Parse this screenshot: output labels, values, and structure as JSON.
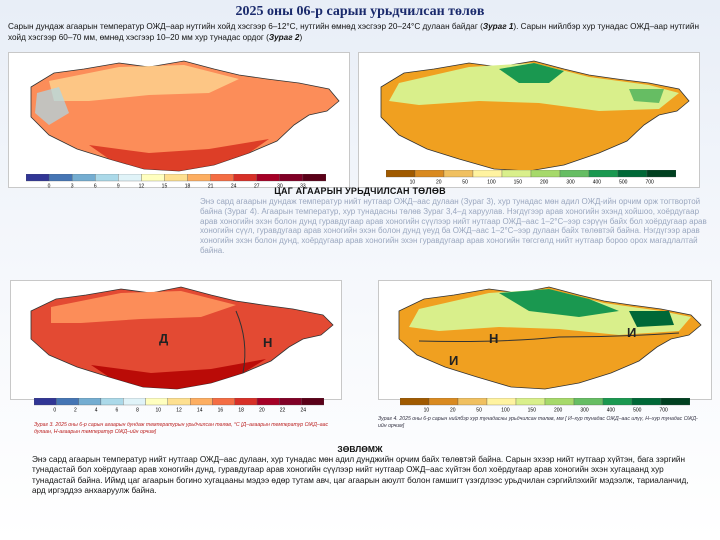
{
  "title": "2025 оны 06-р сарын урьдчилсан төлөв",
  "intro": {
    "part1": "Сарын дундаж агаарын температур ОЖД–аар нутгийн хойд хэсгээр 6–12°C, нутгийн өмнөд хэсгээр 20–24°C дулаан байдаг (",
    "ref1": "Зураг 1",
    "part2": "). Сарын нийлбэр хур тунадас ОЖД–аар нутгийн хойд хэсгээр 60–70 мм, өмнөд хэсгээр 10–20 мм хур тунадас ордог (",
    "ref2": "Зураг 2",
    "part3": ")"
  },
  "section_title": "ЦАГ АГААРЫН УРЬДЧИЛСАН ТӨЛӨВ",
  "forecast_text": "Энэ сард агаарын дундаж температур нийт нутгаар ОЖД–аас дулаан (Зураг 3), хур тунадас мөн адил ОЖД-ийн орчим орж тогтвортой байна (Зураг 4). Агаарын температур, хур тунадасны төлөв Зураг 3,4–д харуулав. Нэгдүгээр арав хоногийн эхэнд хойшоо, хоёрдугаар арав хоногийн эхэн болон дунд гуравдугаар арав хоногийн сүүлээр нийт нутгаар ОЖД–аас 1–2°C–ээр сэрүүн байх бол хоёрдугаар арав хоногийн сүүл, гуравдугаар арав хоногийн эхэн болон дунд үеуд ба ОЖД–аас 1–2°C–ээр дулаан байх төлөвтэй байна. Нэгдүгээр арав хоногийн эхэн болон дунд, хоёрдугаар арав хоногийн эхэн гуравдугаар арав хоногийн төгсгөлд нийт нутгаар бороо орох магадлалтай байна.",
  "captions": {
    "fig3": "Зураг 3. 2025 оны 6-р сарын агаарын дундаж температурын урьдчилсан төлөв, °C [Д–агаарын температур ОЖД–аас дулаан, Н-агаарын температур ОЖД–ийн орчим]",
    "fig4": "Зураг 4. 2025 оны 6-р сарын нийлбэр хур тунадасны урьдчилсан төлөв, мм [ И–хур тунадас ОЖД–аас илүү, Н–хур тунадас ОЖД-ийн орчим]"
  },
  "map_labels": {
    "temp": [
      "Д",
      "Н"
    ],
    "precip": [
      "Н",
      "И",
      "И"
    ]
  },
  "colorbars": {
    "temp_ticks": [
      "0",
      "3",
      "6",
      "9",
      "12",
      "15",
      "18",
      "21",
      "24",
      "27",
      "30",
      "33"
    ],
    "precip_ticks": [
      "10",
      "20",
      "50",
      "100",
      "150",
      "200",
      "300",
      "400",
      "500",
      "700"
    ],
    "temp_ticks2": [
      "0",
      "2",
      "4",
      "6",
      "8",
      "10",
      "12",
      "14",
      "16",
      "18",
      "20",
      "22",
      "24"
    ]
  },
  "advice_title": "ЗӨВЛӨМЖ",
  "advice_text": "Энэ сард агаарын температур нийт нутгаар ОЖД–аас дулаан, хур тунадас мөн адил дунджийн орчим байх төлөвтэй байна. Сарын эхээр нийт нутгаар хүйтэн, бага зэргийн тунадастай бол хоёрдугаар арав хоногийн дунд, гуравдугаар арав хоногийн сүүлээр нийт нутгаар ОЖД–аас хүйтэн бол хоёрдугаар арав хоногийн эхэн хугацаанд хур тунадастай байна. Иймд цаг агаарын богино хугацааны мэдээ өдөр тутам авч, цаг агаарын аюулт болон гамшигт үзэгдлээс урьдчилан сэргийлэхийг мэдээлж, тариаланчид, ард иргэддээ анхааруулж байна.",
  "colors": {
    "title": "#1a2a6c",
    "temp_hot": "#d7301f",
    "temp_warm": "#fc8d59",
    "temp_mild": "#fdcc8a",
    "precip_low": "#f0a020",
    "precip_mid": "#d9ef8b",
    "precip_high": "#1a9850"
  }
}
